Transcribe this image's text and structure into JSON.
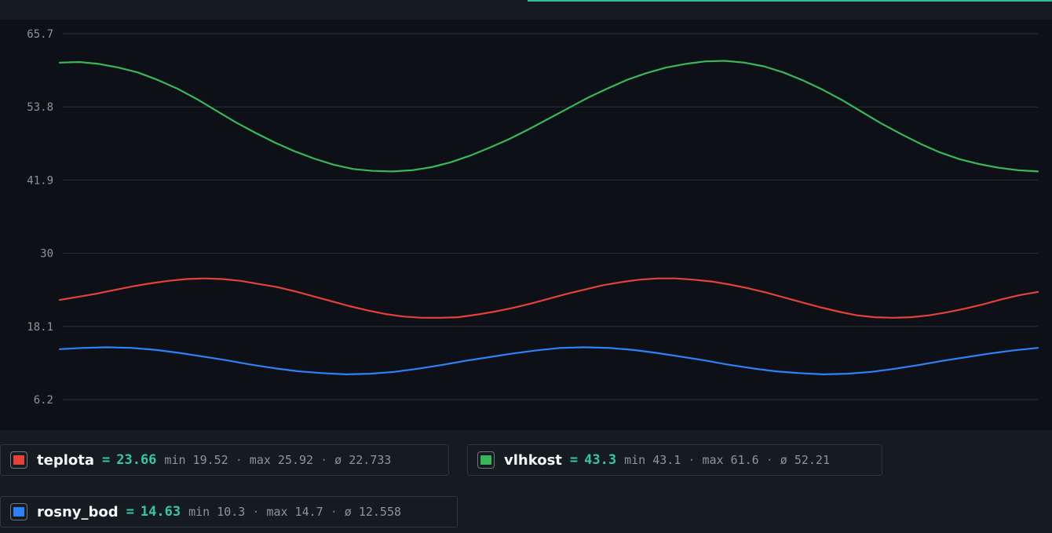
{
  "chart_data": {
    "type": "line",
    "yticks": [
      "65.7",
      "53.8",
      "41.9",
      "30",
      "18.1",
      "6.2"
    ],
    "ylim": [
      6.2,
      65.7
    ],
    "grid": true,
    "series": [
      {
        "name": "teplota",
        "color": "#e5413b",
        "values": [
          22.4,
          22.9,
          23.4,
          24.0,
          24.6,
          25.1,
          25.5,
          25.8,
          25.9,
          25.8,
          25.5,
          25.0,
          24.5,
          23.8,
          23.0,
          22.2,
          21.4,
          20.7,
          20.1,
          19.7,
          19.5,
          19.5,
          19.6,
          20.0,
          20.5,
          21.1,
          21.8,
          22.6,
          23.4,
          24.1,
          24.8,
          25.3,
          25.7,
          25.9,
          25.9,
          25.7,
          25.4,
          24.9,
          24.3,
          23.6,
          22.8,
          22.0,
          21.2,
          20.5,
          19.9,
          19.6,
          19.5,
          19.6,
          19.9,
          20.4,
          21.0,
          21.7,
          22.5,
          23.2,
          23.7
        ]
      },
      {
        "name": "vlhkost",
        "color": "#3ab65a",
        "values": [
          61.0,
          61.1,
          60.8,
          60.2,
          59.4,
          58.2,
          56.8,
          55.1,
          53.2,
          51.3,
          49.6,
          48.0,
          46.6,
          45.4,
          44.4,
          43.7,
          43.4,
          43.3,
          43.5,
          44.0,
          44.8,
          45.9,
          47.2,
          48.6,
          50.2,
          51.9,
          53.6,
          55.3,
          56.8,
          58.2,
          59.3,
          60.2,
          60.8,
          61.2,
          61.3,
          61.0,
          60.4,
          59.4,
          58.1,
          56.6,
          54.9,
          53.0,
          51.1,
          49.4,
          47.8,
          46.4,
          45.3,
          44.5,
          43.9,
          43.5,
          43.3
        ]
      },
      {
        "name": "rosny_bod",
        "color": "#2f81f7",
        "values": [
          14.4,
          14.6,
          14.7,
          14.6,
          14.3,
          13.8,
          13.2,
          12.6,
          11.9,
          11.3,
          10.8,
          10.5,
          10.3,
          10.4,
          10.7,
          11.2,
          11.8,
          12.5,
          13.1,
          13.7,
          14.2,
          14.6,
          14.7,
          14.6,
          14.3,
          13.8,
          13.2,
          12.6,
          11.9,
          11.3,
          10.8,
          10.5,
          10.3,
          10.4,
          10.7,
          11.2,
          11.8,
          12.5,
          13.1,
          13.7,
          14.2,
          14.6
        ]
      }
    ]
  },
  "legend": [
    {
      "name": "teplota",
      "eq": "=",
      "current": "23.66",
      "stats": [
        "min 19.52",
        "max 25.92",
        "ø 22.733"
      ],
      "swatch_color": "#e5413b"
    },
    {
      "name": "vlhkost",
      "eq": "=",
      "current": "43.3",
      "stats": [
        "min 43.1",
        "max 61.6",
        "ø 52.21"
      ],
      "swatch_color": "#3ab65a"
    },
    {
      "name": "rosny_bod",
      "eq": "=",
      "current": "14.63",
      "stats": [
        "min 10.3",
        "max 14.7",
        "ø 12.558"
      ],
      "swatch_color": "#2f81f7"
    }
  ],
  "legend_separator": "·",
  "colors": {
    "accent": "#2fbf9c",
    "plot_background": "#0d1117",
    "panel_background": "#161b22",
    "grid": "#2b3038"
  }
}
